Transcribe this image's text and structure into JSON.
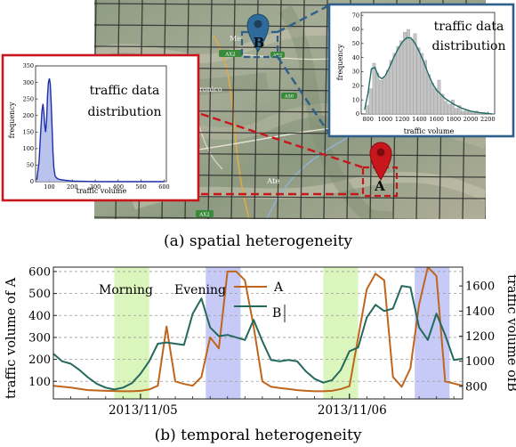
{
  "captions": {
    "a": "(a) spatial heterogeneity",
    "b": "(b) temporal heterogeneity"
  },
  "map": {
    "markers": [
      "A",
      "B"
    ],
    "marker_colors": {
      "A": "#c8161d",
      "B": "#2f6b9a"
    },
    "place_labels": [
      "Ate",
      "ronico",
      "Me"
    ],
    "road_badges": [
      "AX2",
      "AX2",
      "A50",
      "AX2"
    ]
  },
  "inset_A": {
    "title_lines": [
      "traffic data",
      "distribution"
    ],
    "border_color": "#c8161d",
    "chart_data": {
      "type": "histogram",
      "xlabel": "traffic volume",
      "ylabel": "frequency",
      "xticks": [
        100,
        200,
        300,
        400,
        500,
        600
      ],
      "yticks": [
        0,
        50,
        100,
        150,
        200,
        250,
        300,
        350
      ],
      "xlim": [
        40,
        610
      ],
      "ylim": [
        0,
        350
      ],
      "density_curve": {
        "x": [
          45,
          55,
          62,
          68,
          72,
          76,
          80,
          84,
          88,
          92,
          96,
          100,
          104,
          108,
          112,
          116,
          120,
          125,
          130,
          138,
          150,
          170,
          200,
          300,
          600
        ],
        "y": [
          5,
          60,
          150,
          215,
          235,
          210,
          170,
          150,
          185,
          260,
          300,
          312,
          295,
          240,
          160,
          85,
          40,
          18,
          12,
          8,
          6,
          4,
          2,
          0,
          0
        ]
      }
    }
  },
  "inset_B": {
    "title_lines": [
      "traffic data",
      "distribution"
    ],
    "border_color": "#2f5f8a",
    "chart_data": {
      "type": "histogram",
      "xlabel": "traffic volume",
      "ylabel": "frequency",
      "xticks": [
        800,
        1000,
        1200,
        1400,
        1600,
        1800,
        2000,
        2200
      ],
      "yticks": [
        0,
        10,
        20,
        30,
        40,
        50,
        60,
        70
      ],
      "xlim": [
        720,
        2280
      ],
      "ylim": [
        0,
        72
      ],
      "bins": {
        "x": [
          790,
          830,
          870,
          910,
          950,
          990,
          1030,
          1070,
          1110,
          1150,
          1190,
          1230,
          1270,
          1310,
          1350,
          1390,
          1430,
          1470,
          1510,
          1550,
          1590,
          1630,
          1670,
          1710,
          1750,
          1790,
          1830,
          1870,
          1910,
          1950,
          1990,
          2030,
          2070,
          2110,
          2150
        ],
        "y": [
          6,
          18,
          36,
          29,
          24,
          26,
          31,
          38,
          43,
          48,
          52,
          58,
          60,
          53,
          57,
          47,
          43,
          38,
          28,
          22,
          18,
          24,
          14,
          9,
          7,
          10,
          4,
          6,
          2,
          3,
          2,
          1,
          2,
          1,
          1
        ]
      },
      "density_curve": {
        "x": [
          760,
          800,
          840,
          880,
          920,
          960,
          1000,
          1050,
          1100,
          1150,
          1200,
          1250,
          1300,
          1350,
          1400,
          1450,
          1500,
          1550,
          1600,
          1650,
          1700,
          1800,
          1900,
          2000,
          2100,
          2250
        ],
        "y": [
          3,
          15,
          32,
          33,
          27,
          25,
          27,
          33,
          40,
          46,
          51,
          54,
          54,
          50,
          44,
          37,
          29,
          22,
          17,
          14,
          11,
          7,
          4,
          2,
          1,
          0
        ]
      }
    }
  },
  "time_chart": {
    "chart_data": {
      "type": "line",
      "ylabel_left": "traffic volume of A",
      "ylabel_right": "traffic volume ofB",
      "yticks_left": [
        100,
        200,
        300,
        400,
        500,
        600
      ],
      "yticks_right": [
        800,
        1000,
        1200,
        1400,
        1600
      ],
      "ylim_left": [
        20,
        620
      ],
      "ylim_right": [
        700,
        1750
      ],
      "xlim": [
        0,
        47
      ],
      "x_tick_labels": [
        {
          "x": 10,
          "label": "2013/11/05"
        },
        {
          "x": 34,
          "label": "2013/11/06"
        }
      ],
      "periods": [
        {
          "label": "Morning",
          "start": 7,
          "end": 11,
          "color": "#d9f5b8"
        },
        {
          "label": "Evening",
          "start": 17.5,
          "end": 21.5,
          "color": "#c4c6f5"
        },
        {
          "label": "",
          "start": 31,
          "end": 35,
          "color": "#d9f5b8"
        },
        {
          "label": "",
          "start": 41.5,
          "end": 45.5,
          "color": "#c4c6f5"
        }
      ],
      "series": [
        {
          "name": "A",
          "axis": "left",
          "color": "#c0651c",
          "x": [
            0,
            2,
            4,
            6,
            8,
            9,
            10,
            11,
            12,
            13,
            14,
            15,
            16,
            17,
            18,
            19,
            20,
            21,
            22,
            23,
            24,
            25,
            26,
            27,
            28,
            29,
            30,
            31,
            32,
            33,
            34,
            35,
            36,
            37,
            38,
            39,
            40,
            41,
            42,
            43,
            44,
            45,
            46,
            47
          ],
          "y": [
            80,
            72,
            60,
            57,
            55,
            55,
            57,
            63,
            80,
            350,
            100,
            88,
            80,
            120,
            300,
            250,
            600,
            600,
            560,
            350,
            100,
            75,
            70,
            65,
            60,
            57,
            55,
            55,
            57,
            65,
            78,
            300,
            520,
            590,
            560,
            120,
            75,
            160,
            450,
            620,
            580,
            100,
            90,
            80
          ]
        },
        {
          "name": "B",
          "axis": "right",
          "color": "#25695e",
          "x": [
            0,
            1,
            2,
            3,
            4,
            5,
            6,
            7,
            8,
            9,
            10,
            11,
            12,
            13,
            14,
            15,
            16,
            17,
            18,
            19,
            20,
            21,
            22,
            23,
            24,
            25,
            26,
            27,
            28,
            29,
            30,
            31,
            32,
            33,
            34,
            35,
            36,
            37,
            38,
            39,
            40,
            41,
            42,
            43,
            44,
            45,
            46,
            47
          ],
          "y": [
            1060,
            1000,
            980,
            930,
            870,
            820,
            790,
            775,
            790,
            825,
            900,
            1000,
            1140,
            1150,
            1140,
            1130,
            1380,
            1500,
            1270,
            1200,
            1210,
            1190,
            1170,
            1330,
            1160,
            1010,
            1000,
            1010,
            1000,
            920,
            860,
            830,
            850,
            930,
            1080,
            1110,
            1350,
            1450,
            1400,
            1420,
            1600,
            1590,
            1270,
            1170,
            1380,
            1210,
            1010,
            1020
          ]
        }
      ],
      "legend": {
        "position": "top-right",
        "entries": [
          "A",
          "B"
        ]
      }
    }
  }
}
